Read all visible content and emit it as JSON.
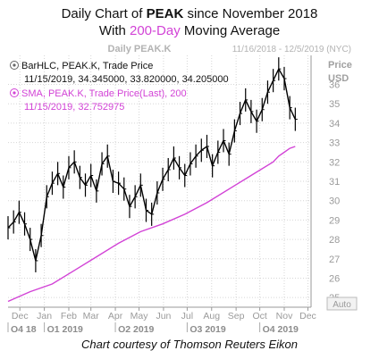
{
  "title": {
    "prefix": "Daily Chart of ",
    "ticker": "PEAK",
    "suffix": " since November 2018",
    "line2_prefix": "With ",
    "line2_accent": "200-Day",
    "line2_suffix": " Moving Average"
  },
  "header": {
    "chart_name": "Daily PEAK.K",
    "date_range": "11/16/2018 - 12/5/2019 (NYC)"
  },
  "legend": {
    "bar_series": "BarHLC, PEAK.K, Trade Price",
    "bar_values": "11/15/2019, 34.345000, 33.820000, 34.205000",
    "sma_series": "SMA, PEAK.K, Trade Price(Last),  200",
    "sma_values": "11/15/2019, 32.752975"
  },
  "axis": {
    "price_label": "Price",
    "currency_label": "USD",
    "auto_button": "Auto"
  },
  "credit": "Chart courtesy of Thomson Reuters Eikon",
  "colors": {
    "price": "#000000",
    "sma": "#d243d6",
    "grid": "#d6d6d6",
    "header_text": "#b3b3b3",
    "axis_text": "#9a9a9a",
    "quarter_text": "#8c8c8c",
    "accent": "#d243d6"
  },
  "chart_data": {
    "type": "line",
    "ylim": [
      24.5,
      37.5
    ],
    "yticks": [
      25,
      26,
      27,
      28,
      29,
      30,
      31,
      32,
      33,
      34,
      35,
      36
    ],
    "month_ticks": [
      "Dec",
      "Jan",
      "Feb",
      "Mar",
      "Apr",
      "May",
      "Jun",
      "Jul",
      "Aug",
      "Sep",
      "Oct",
      "Nov",
      "Dec"
    ],
    "quarter_ticks": [
      "Q4 18",
      "Q1 2019",
      "Q2 2019",
      "Q3 2019",
      "Q4 2019"
    ],
    "series": [
      {
        "name": "BarHLC, PEAK.K, Trade Price",
        "kind": "price",
        "x": [
          "2018-11-16",
          "2018-11-23",
          "2018-11-30",
          "2018-12-07",
          "2018-12-14",
          "2018-12-21",
          "2018-12-28",
          "2019-01-04",
          "2019-01-11",
          "2019-01-18",
          "2019-01-25",
          "2019-02-01",
          "2019-02-08",
          "2019-02-15",
          "2019-02-22",
          "2019-03-01",
          "2019-03-08",
          "2019-03-15",
          "2019-03-22",
          "2019-03-29",
          "2019-04-05",
          "2019-04-12",
          "2019-04-19",
          "2019-04-26",
          "2019-05-03",
          "2019-05-10",
          "2019-05-17",
          "2019-05-24",
          "2019-05-31",
          "2019-06-07",
          "2019-06-14",
          "2019-06-21",
          "2019-06-28",
          "2019-07-05",
          "2019-07-12",
          "2019-07-19",
          "2019-07-26",
          "2019-08-02",
          "2019-08-09",
          "2019-08-16",
          "2019-08-23",
          "2019-08-30",
          "2019-09-06",
          "2019-09-13",
          "2019-09-20",
          "2019-09-27",
          "2019-10-04",
          "2019-10-11",
          "2019-10-18",
          "2019-10-25",
          "2019-11-01",
          "2019-11-08",
          "2019-11-15"
        ],
        "values": [
          28.6,
          28.9,
          29.4,
          28.8,
          28.0,
          26.9,
          28.2,
          30.2,
          30.9,
          31.4,
          30.7,
          31.7,
          32.0,
          31.2,
          30.8,
          31.3,
          30.5,
          31.9,
          32.3,
          31.0,
          30.9,
          30.6,
          29.7,
          30.2,
          30.8,
          29.5,
          29.3,
          30.4,
          31.1,
          31.6,
          32.2,
          31.7,
          31.3,
          31.9,
          32.3,
          32.6,
          32.8,
          31.8,
          32.5,
          33.1,
          32.4,
          33.6,
          34.5,
          35.2,
          34.6,
          34.1,
          34.7,
          35.6,
          36.2,
          36.8,
          36.3,
          34.8,
          34.2
        ]
      },
      {
        "name": "SMA, PEAK.K, Trade Price(Last),  200",
        "kind": "sma",
        "x": [
          "2018-11-16",
          "2018-12-14",
          "2019-01-11",
          "2019-02-08",
          "2019-03-08",
          "2019-04-05",
          "2019-05-03",
          "2019-05-31",
          "2019-06-28",
          "2019-07-26",
          "2019-08-23",
          "2019-09-20",
          "2019-10-18",
          "2019-10-25",
          "2019-11-01",
          "2019-11-08",
          "2019-11-15"
        ],
        "values": [
          24.8,
          25.3,
          25.7,
          26.4,
          27.1,
          27.8,
          28.4,
          28.8,
          29.3,
          29.9,
          30.6,
          31.3,
          32.0,
          32.3,
          32.5,
          32.7,
          32.8
        ]
      }
    ]
  }
}
